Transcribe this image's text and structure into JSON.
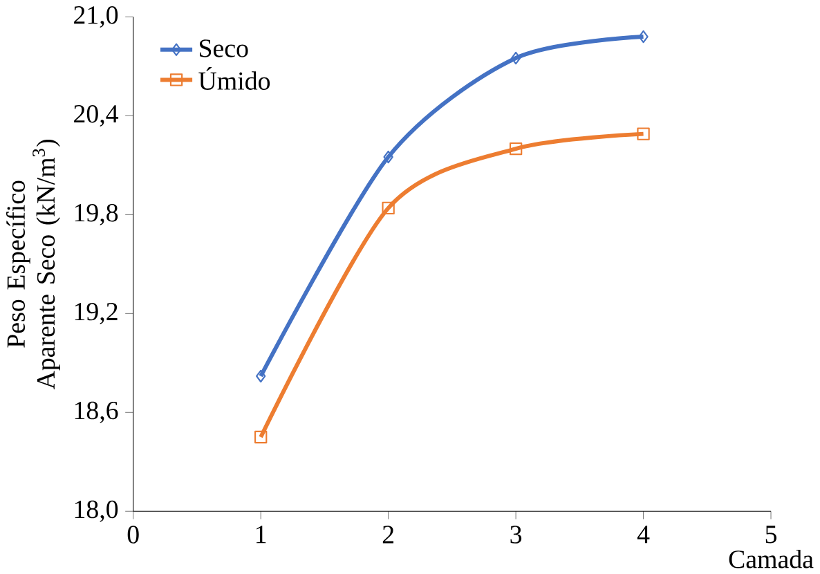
{
  "chart_data": {
    "type": "line",
    "xlabel": "Camada",
    "ylabel": "Peso Específico Aparente Seco (kN/m$^{3}$)",
    "x": [
      1,
      2,
      3,
      4
    ],
    "series": [
      {
        "name": "Seco",
        "color": "#4472c4",
        "values": [
          18.82,
          20.15,
          20.75,
          20.88
        ],
        "marker": "diamond"
      },
      {
        "name": "Úmido",
        "color": "#ed7d31",
        "values": [
          18.45,
          19.84,
          20.2,
          20.29
        ],
        "marker": "square"
      }
    ],
    "xlim": [
      0,
      5
    ],
    "xticks": [
      0,
      1,
      2,
      3,
      4,
      5
    ],
    "ylim": [
      18.0,
      21.0
    ],
    "yticks": [
      {
        "value": 18.0,
        "label": "18,0"
      },
      {
        "value": 18.6,
        "label": "18,6"
      },
      {
        "value": 19.2,
        "label": "19,2"
      },
      {
        "value": 19.8,
        "label": "19,8"
      },
      {
        "value": 20.4,
        "label": "20,4"
      },
      {
        "value": 21.0,
        "label": "21,0"
      }
    ],
    "legend": "top left",
    "line_style": "solid"
  }
}
